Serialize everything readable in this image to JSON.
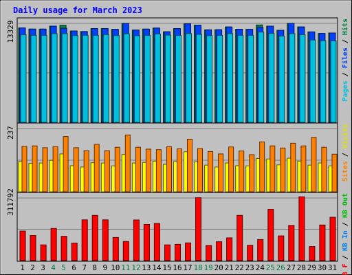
{
  "chart_data": {
    "type": "bar",
    "title": "Daily usage for March 2023",
    "days": [
      "1",
      "2",
      "3",
      "4",
      "5",
      "6",
      "7",
      "8",
      "9",
      "10",
      "11",
      "12",
      "13",
      "14",
      "15",
      "16",
      "17",
      "18",
      "19",
      "20",
      "21",
      "22",
      "23",
      "24",
      "25",
      "26",
      "27",
      "28",
      "29",
      "30",
      "31"
    ],
    "weekend_days": [
      "4",
      "5",
      "11",
      "12",
      "18",
      "19",
      "25",
      "26"
    ],
    "panels": [
      {
        "name": "hits-files-pages",
        "max_label": "13329",
        "max_value": 13329,
        "legend": [
          {
            "text": "Pages",
            "color": "#00c0e0"
          },
          {
            "text": "Files",
            "color": "#0040ff"
          },
          {
            "text": "Hits",
            "color": "#008040"
          }
        ],
        "series": [
          {
            "name": "Hits",
            "color": "#008040",
            "values": [
              12720,
              12560,
              12560,
              12960,
              13070,
              12300,
              12230,
              12630,
              12630,
              12520,
              13310,
              12440,
              12560,
              12700,
              12200,
              12630,
              13260,
              13080,
              12460,
              12480,
              12850,
              12540,
              12520,
              13120,
              12960,
              12400,
              13330,
              12850,
              12180,
              11970,
              12030
            ]
          },
          {
            "name": "Files",
            "color": "#0040ff",
            "values": [
              12720,
              12560,
              12560,
              12960,
              12660,
              12300,
              12230,
              12630,
              12630,
              12520,
              13310,
              12440,
              12560,
              12700,
              12200,
              12630,
              13260,
              13080,
              12460,
              12480,
              12850,
              12540,
              12520,
              12780,
              12960,
              12400,
              13330,
              12850,
              12180,
              11970,
              12030
            ]
          },
          {
            "name": "Pages",
            "color": "#00c0e0",
            "values": [
              11800,
              11720,
              11720,
              11950,
              11950,
              11690,
              11730,
              11720,
              11820,
              11690,
              11930,
              11670,
              11720,
              11900,
              11750,
              11700,
              11960,
              11850,
              11680,
              11720,
              11950,
              11720,
              11720,
              12150,
              11980,
              11620,
              11950,
              11800,
              11090,
              11000,
              10970
            ]
          }
        ]
      },
      {
        "name": "visits-sites",
        "max_label": "237",
        "max_value": 237,
        "legend": [
          {
            "text": "Sites",
            "color": "#ff8000"
          },
          {
            "text": "Visits",
            "color": "#e0e000"
          }
        ],
        "series": [
          {
            "name": "Visits",
            "color": "#ffff00",
            "values": [
              113,
              107,
              108,
              118,
              142,
              98,
              93,
              109,
              108,
              97,
              140,
              108,
              110,
              115,
              103,
              113,
              150,
              112,
              100,
              93,
              108,
              98,
              97,
              125,
              123,
              101,
              126,
              115,
              100,
              108,
              97
            ]
          },
          {
            "name": "Sites",
            "color": "#ff8000",
            "values": [
              170,
              172,
              165,
              169,
              207,
              165,
              154,
              178,
              154,
              167,
              213,
              167,
              160,
              158,
              169,
              161,
              197,
              162,
              151,
              142,
              168,
              153,
              139,
              187,
              172,
              164,
              182,
              172,
              204,
              167,
              141
            ]
          }
        ]
      },
      {
        "name": "kb-in-out",
        "max_label": "311792",
        "max_value": 311792,
        "legend": [
          {
            "text": "KB F",
            "color": "#ff0000"
          },
          {
            "text": "KB In",
            "color": "#0080ff"
          },
          {
            "text": "KB Out",
            "color": "#00c000"
          }
        ],
        "series": [
          {
            "name": "KB F",
            "color": "#ff0000",
            "values": [
              147000,
              125000,
              78000,
              160000,
              121000,
              87000,
              203000,
              225000,
              203000,
              115000,
              95000,
              202000,
              180000,
              185000,
              78000,
              81000,
              88000,
              313000,
              75000,
              94000,
              113000,
              225000,
              76000,
              105000,
              255000,
              123000,
              175000,
              318000,
              70000,
              177000,
              216000
            ]
          }
        ]
      }
    ]
  }
}
